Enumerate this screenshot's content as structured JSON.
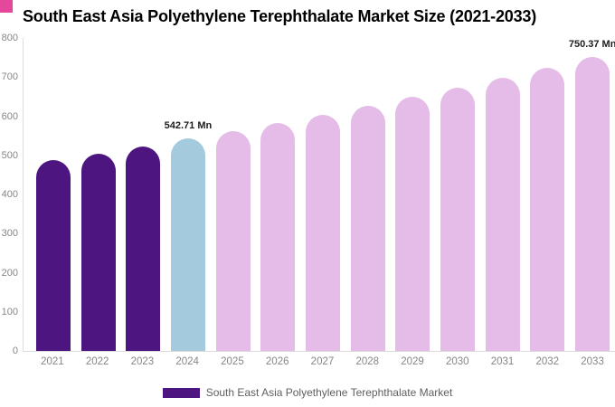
{
  "corner_accent_color": "#e5479b",
  "chart_data": {
    "type": "bar",
    "title": "South East Asia Polyethylene Terephthalate Market Size (2021-2033)",
    "categories": [
      "2021",
      "2022",
      "2023",
      "2024",
      "2025",
      "2026",
      "2027",
      "2028",
      "2029",
      "2030",
      "2031",
      "2032",
      "2033"
    ],
    "values": [
      487,
      505,
      523,
      542.71,
      563,
      583,
      604,
      627,
      650,
      673,
      698,
      724,
      750.37
    ],
    "colors": [
      "#4d1580",
      "#4d1580",
      "#4d1580",
      "#a3cadd",
      "#e5bbe7",
      "#e5bbe7",
      "#e5bbe7",
      "#e5bbe7",
      "#e5bbe7",
      "#e5bbe7",
      "#e5bbe7",
      "#e5bbe7",
      "#e5bbe7"
    ],
    "ylim": [
      0,
      800
    ],
    "yticks": [
      0,
      100,
      200,
      300,
      400,
      500,
      600,
      700,
      800
    ],
    "xlabel": "",
    "ylabel": "",
    "grid": false,
    "annotations": [
      {
        "category": "2024",
        "value": 542.71,
        "text": "542.71 Mn"
      },
      {
        "category": "2033",
        "value": 750.37,
        "text": "750.37 Mn"
      }
    ],
    "legend": {
      "position": "bottom",
      "label": "South East Asia Polyethylene Terephthalate Market",
      "swatch_color": "#4d1580"
    },
    "axis_color": "#dcdcdc",
    "tick_label_color": "#868686"
  }
}
